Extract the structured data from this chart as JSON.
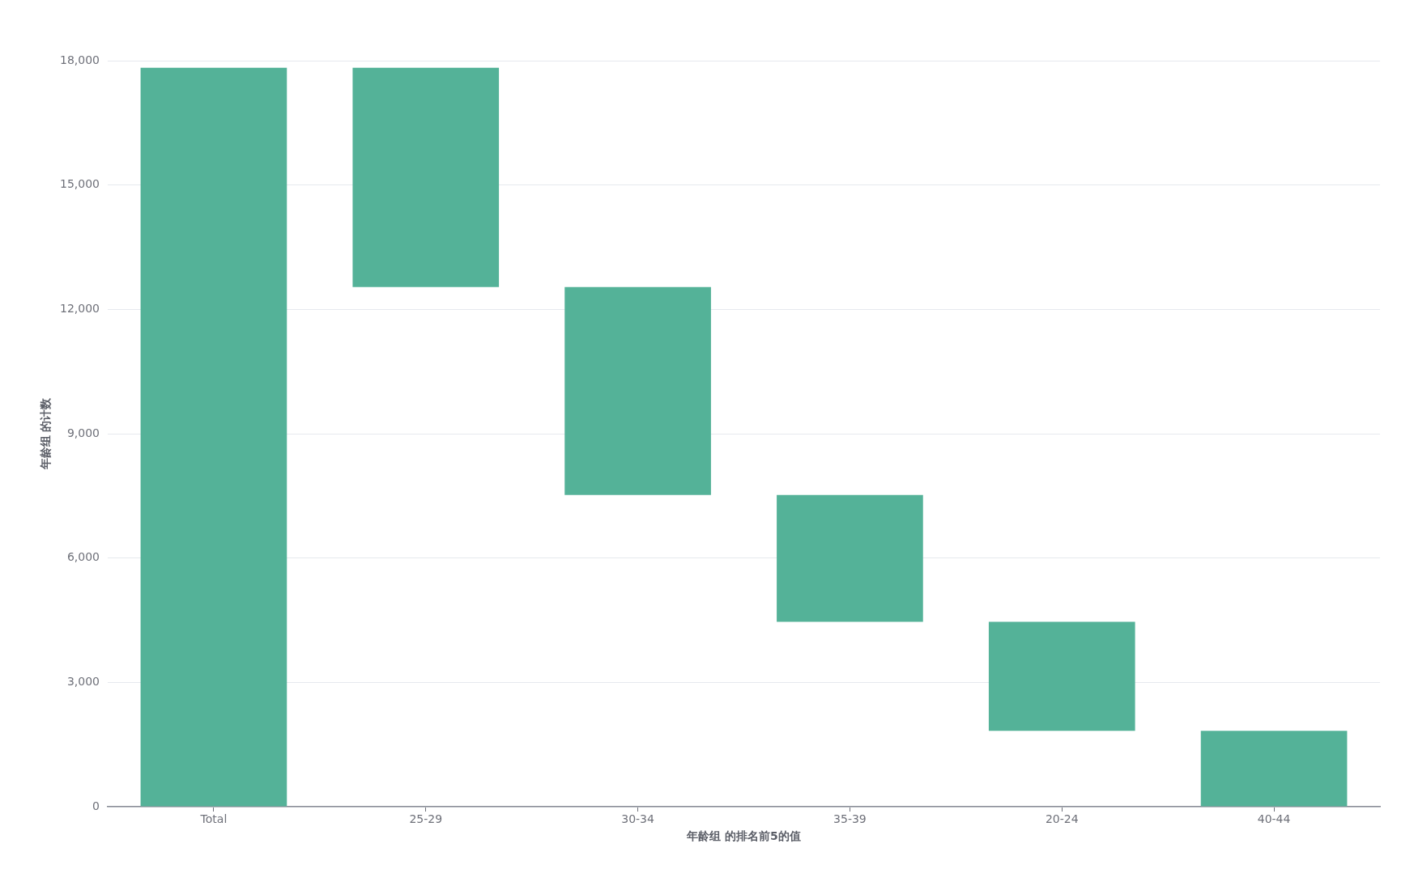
{
  "chart_data": {
    "type": "bar",
    "xlabel": "年龄组 的排名前5的值",
    "ylabel": "年龄组 的计数",
    "categories": [
      "Total",
      "25-29",
      "30-34",
      "35-39",
      "20-24",
      "40-44"
    ],
    "values": [
      17830,
      5290,
      5020,
      3060,
      2630,
      1830
    ],
    "base": [
      0,
      12540,
      7520,
      4460,
      1830,
      0
    ],
    "color": "#54b298",
    "ylim": [
      0,
      18000
    ],
    "yticks": [
      0,
      {
        "value": 3000,
        "label": "3,000"
      },
      {
        "value": 6000,
        "label": "6,000"
      },
      {
        "value": 9000,
        "label": "9,000"
      },
      {
        "value": 12000,
        "label": "12,000"
      },
      {
        "value": 15000,
        "label": "15,000"
      },
      {
        "value": 18000,
        "label": "18,000"
      }
    ],
    "grid": "y"
  }
}
